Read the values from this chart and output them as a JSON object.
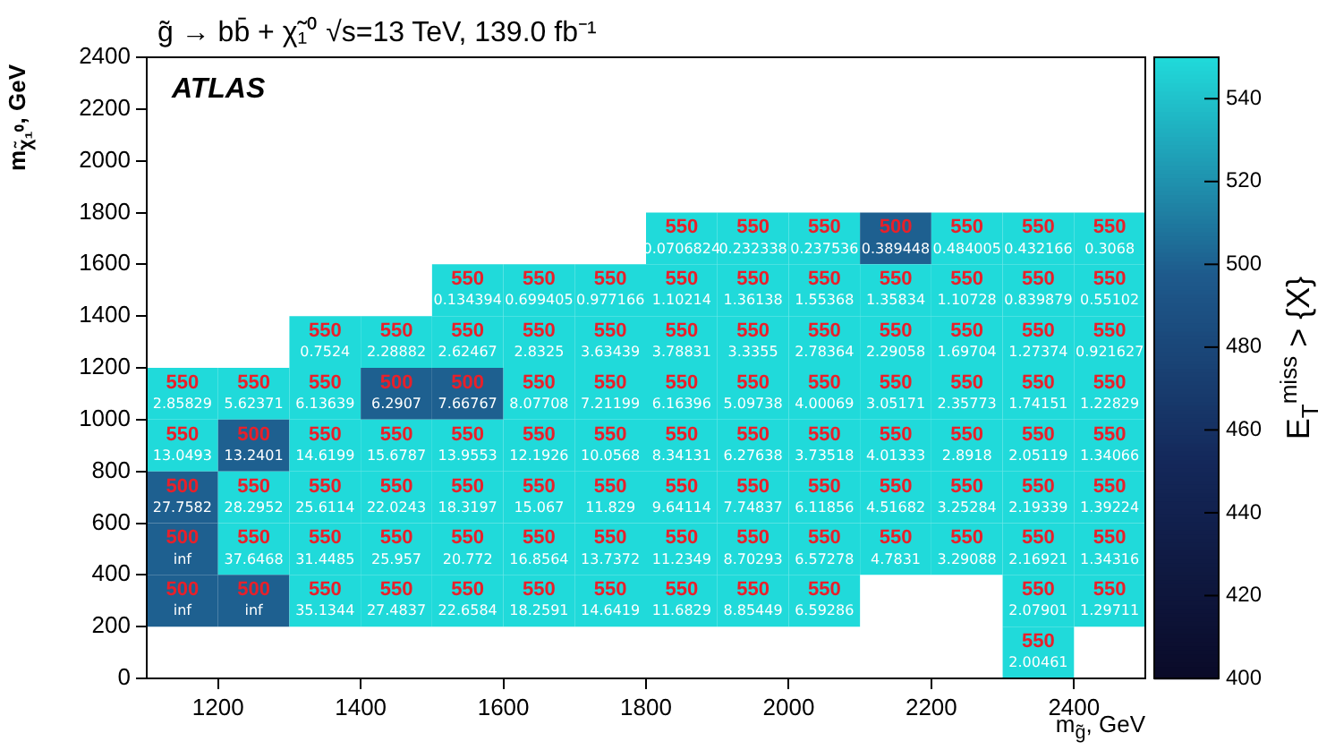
{
  "chart_data": {
    "type": "heatmap",
    "title": "g̃ → bb̄ + χ̃₁⁰    √s=13 TeV, 139.0 fb⁻¹",
    "xlabel": "m$_{g̃}$, GeV",
    "ylabel": "m$_{χ̃₁⁰}$, GeV",
    "clabel": "E$_{T}$$^{miss}$ > {X}",
    "annotations": [
      "ATLAS"
    ],
    "x": [
      1150,
      1250,
      1350,
      1450,
      1550,
      1650,
      1750,
      1850,
      1950,
      2050,
      2150,
      2250,
      2350,
      2450
    ],
    "y": [
      1700,
      1500,
      1300,
      1100,
      900,
      700,
      500,
      300,
      100
    ],
    "xlim": [
      1100,
      2500
    ],
    "xticks": [
      1200,
      1400,
      1600,
      1800,
      2000,
      2200,
      2400
    ],
    "ylim": [
      0,
      2400
    ],
    "yticks": [
      0,
      200,
      400,
      600,
      800,
      1000,
      1200,
      1400,
      1600,
      1800,
      2000,
      2200,
      2400
    ],
    "clim": [
      400,
      550
    ],
    "cticks": [
      400,
      420,
      440,
      460,
      480,
      500,
      520,
      540
    ],
    "cells": [
      [
        null,
        null,
        null,
        null,
        null,
        null,
        null,
        550,
        550,
        550,
        500,
        550,
        550,
        550
      ],
      [
        null,
        null,
        null,
        null,
        550,
        550,
        550,
        550,
        550,
        550,
        550,
        550,
        550,
        550
      ],
      [
        null,
        null,
        550,
        550,
        550,
        550,
        550,
        550,
        550,
        550,
        550,
        550,
        550,
        550
      ],
      [
        550,
        550,
        550,
        500,
        500,
        550,
        550,
        550,
        550,
        550,
        550,
        550,
        550,
        550
      ],
      [
        550,
        500,
        550,
        550,
        550,
        550,
        550,
        550,
        550,
        550,
        550,
        550,
        550,
        550
      ],
      [
        500,
        550,
        550,
        550,
        550,
        550,
        550,
        550,
        550,
        550,
        550,
        550,
        550,
        550
      ],
      [
        500,
        550,
        550,
        550,
        550,
        550,
        550,
        550,
        550,
        550,
        550,
        550,
        550,
        550
      ],
      [
        500,
        500,
        550,
        550,
        550,
        550,
        550,
        550,
        550,
        550,
        null,
        null,
        550,
        550
      ],
      [
        null,
        null,
        null,
        null,
        null,
        null,
        null,
        null,
        null,
        null,
        null,
        null,
        550,
        null
      ]
    ],
    "cell_labels": [
      [
        null,
        null,
        null,
        null,
        null,
        null,
        null,
        "550\n0.0706824",
        "550\n0.232338",
        "550\n0.237536",
        "500\n0.389448",
        "550\n0.484005",
        "550\n0.432166",
        "550\n0.3068"
      ],
      [
        null,
        null,
        null,
        null,
        "550\n0.134394",
        "550\n0.699405",
        "550\n0.977166",
        "550\n1.10214",
        "550\n1.36138",
        "550\n1.55368",
        "550\n1.35834",
        "550\n1.10728",
        "550\n0.839879",
        "550\n0.55102"
      ],
      [
        null,
        null,
        "550\n0.7524",
        "550\n2.28882",
        "550\n2.62467",
        "550\n2.8325",
        "550\n3.63439",
        "550\n3.78831",
        "550\n3.3355",
        "550\n2.78364",
        "550\n2.29058",
        "550\n1.69704",
        "550\n1.27374",
        "550\n0.921627"
      ],
      [
        "550\n2.85829",
        "550\n5.62371",
        "550\n6.13639",
        "500\n6.2907",
        "500\n7.66767",
        "550\n8.07708",
        "550\n7.21199",
        "550\n6.16396",
        "550\n5.09738",
        "550\n4.00069",
        "550\n3.05171",
        "550\n2.35773",
        "550\n1.74151",
        "550\n1.22829"
      ],
      [
        "550\n13.0493",
        "500\n13.2401",
        "550\n14.6199",
        "550\n15.6787",
        "550\n13.9553",
        "550\n12.1926",
        "550\n10.0568",
        "550\n8.34131",
        "550\n6.27638",
        "550\n3.73518",
        "550\n4.01333",
        "550\n2.8918",
        "550\n2.05119",
        "550\n1.34066"
      ],
      [
        "500\n27.7582",
        "550\n28.2952",
        "550\n25.6114",
        "550\n22.0243",
        "550\n18.3197",
        "550\n15.067",
        "550\n11.829",
        "550\n9.64114",
        "550\n7.74837",
        "550\n6.11856",
        "550\n4.51682",
        "550\n3.25284",
        "550\n2.19339",
        "550\n1.39224"
      ],
      [
        "500\ninf",
        "550\n37.6468",
        "550\n31.4485",
        "550\n25.957",
        "550\n20.772",
        "550\n16.8564",
        "550\n13.7372",
        "550\n11.2349",
        "550\n8.70293",
        "550\n6.57278",
        "550\n4.7831",
        "550\n3.29088",
        "550\n2.16921",
        "550\n1.34316"
      ],
      [
        "500\ninf",
        "500\ninf",
        "550\n35.1344",
        "550\n27.4837",
        "550\n22.6584",
        "550\n18.2591",
        "550\n14.6419",
        "550\n11.6829",
        "550\n8.85449",
        "550\n6.59286",
        null,
        null,
        "550\n2.07901",
        "550\n1.29711"
      ],
      [
        null,
        null,
        null,
        null,
        null,
        null,
        null,
        null,
        null,
        null,
        null,
        null,
        "550\n2.00461",
        null
      ]
    ],
    "grid": false,
    "legend": false
  }
}
